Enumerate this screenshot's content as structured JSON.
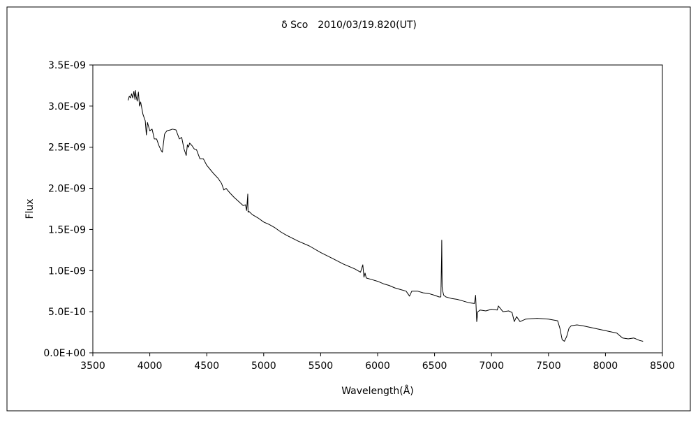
{
  "chart_data": {
    "type": "line",
    "title": "δ Sco　2010/03/19.820(UT)",
    "xlabel": "Wavelength(Å)",
    "ylabel": "Flux",
    "xlim": [
      3500,
      8500
    ],
    "ylim": [
      0,
      3.5e-09
    ],
    "x_ticks": [
      3500,
      4000,
      4500,
      5000,
      5500,
      6000,
      6500,
      7000,
      7500,
      8000,
      8500
    ],
    "x_tick_labels": [
      "3500",
      "4000",
      "4500",
      "5000",
      "5500",
      "6000",
      "6500",
      "7000",
      "7500",
      "8000",
      "8500"
    ],
    "y_ticks": [
      0,
      5e-10,
      1e-09,
      1.5e-09,
      2e-09,
      2.5e-09,
      3e-09,
      3.5e-09
    ],
    "y_tick_labels": [
      "0.0E+00",
      "5.0E-10",
      "1.0E-09",
      "1.5E-09",
      "2.0E-09",
      "2.5E-09",
      "3.0E-09",
      "3.5E-09"
    ],
    "grid": false,
    "legend": false,
    "line_color": "#000000",
    "series": [
      {
        "x": [
          3810,
          3820,
          3830,
          3840,
          3850,
          3860,
          3870,
          3875,
          3880,
          3890,
          3900,
          3910,
          3920,
          3940,
          3960,
          3970,
          3980,
          4000,
          4020,
          4040,
          4060,
          4080,
          4100,
          4110,
          4130,
          4150,
          4180,
          4200,
          4230,
          4260,
          4280,
          4300,
          4320,
          4330,
          4340,
          4350,
          4370,
          4390,
          4410,
          4440,
          4470,
          4500,
          4530,
          4560,
          4600,
          4630,
          4650,
          4670,
          4700,
          4740,
          4780,
          4820,
          4840,
          4850,
          4860,
          4861,
          4863,
          4870,
          4900,
          4950,
          5000,
          5050,
          5100,
          5150,
          5200,
          5300,
          5400,
          5500,
          5600,
          5700,
          5800,
          5850,
          5870,
          5880,
          5890,
          5900,
          5950,
          6000,
          6050,
          6100,
          6150,
          6200,
          6250,
          6280,
          6300,
          6350,
          6400,
          6450,
          6500,
          6540,
          6555,
          6562,
          6563,
          6566,
          6570,
          6580,
          6600,
          6650,
          6700,
          6750,
          6800,
          6850,
          6860,
          6870,
          6880,
          6900,
          6950,
          7000,
          7050,
          7060,
          7100,
          7150,
          7180,
          7200,
          7220,
          7250,
          7300,
          7400,
          7500,
          7580,
          7600,
          7620,
          7640,
          7660,
          7680,
          7700,
          7750,
          7800,
          7900,
          8000,
          8100,
          8150,
          8200,
          8250,
          8300,
          8330
        ],
        "y": [
          3.07e-09,
          3.12e-09,
          3.1e-09,
          3.15e-09,
          3.1e-09,
          3.18e-09,
          3.08e-09,
          3.19e-09,
          3.12e-09,
          3.06e-09,
          3.17e-09,
          3e-09,
          3.05e-09,
          2.9e-09,
          2.82e-09,
          2.65e-09,
          2.8e-09,
          2.7e-09,
          2.72e-09,
          2.6e-09,
          2.6e-09,
          2.52e-09,
          2.46e-09,
          2.44e-09,
          2.66e-09,
          2.7e-09,
          2.71e-09,
          2.72e-09,
          2.71e-09,
          2.6e-09,
          2.62e-09,
          2.48e-09,
          2.4e-09,
          2.53e-09,
          2.5e-09,
          2.55e-09,
          2.52e-09,
          2.48e-09,
          2.47e-09,
          2.36e-09,
          2.36e-09,
          2.28e-09,
          2.23e-09,
          2.18e-09,
          2.12e-09,
          2.06e-09,
          1.98e-09,
          2e-09,
          1.95e-09,
          1.89e-09,
          1.84e-09,
          1.79e-09,
          1.8e-09,
          1.73e-09,
          1.93e-09,
          1.8e-09,
          1.71e-09,
          1.72e-09,
          1.68e-09,
          1.64e-09,
          1.59e-09,
          1.56e-09,
          1.52e-09,
          1.47e-09,
          1.43e-09,
          1.36e-09,
          1.3e-09,
          1.22e-09,
          1.15e-09,
          1.08e-09,
          1.02e-09,
          9.8e-10,
          1.07e-09,
          9.2e-10,
          9.7e-10,
          9.1e-10,
          8.9e-10,
          8.7e-10,
          8.4e-10,
          8.2e-10,
          7.9e-10,
          7.7e-10,
          7.5e-10,
          6.9e-10,
          7.5e-10,
          7.5e-10,
          7.3e-10,
          7.2e-10,
          7e-10,
          6.8e-10,
          6.8e-10,
          1.2e-09,
          1.37e-09,
          8e-10,
          7.6e-10,
          7e-10,
          6.8e-10,
          6.6e-10,
          6.5e-10,
          6.3e-10,
          6.1e-10,
          6e-10,
          7e-10,
          3.8e-10,
          5e-10,
          5.2e-10,
          5.1e-10,
          5.3e-10,
          5.2e-10,
          5.7e-10,
          5e-10,
          5.1e-10,
          4.9e-10,
          3.8e-10,
          4.4e-10,
          3.8e-10,
          4.1e-10,
          4.2e-10,
          4.1e-10,
          3.9e-10,
          3e-10,
          1.6e-10,
          1.4e-10,
          2e-10,
          3e-10,
          3.3e-10,
          3.4e-10,
          3.3e-10,
          3e-10,
          2.7e-10,
          2.4e-10,
          1.8e-10,
          1.7e-10,
          1.8e-10,
          1.5e-10,
          1.4e-10
        ]
      }
    ]
  }
}
